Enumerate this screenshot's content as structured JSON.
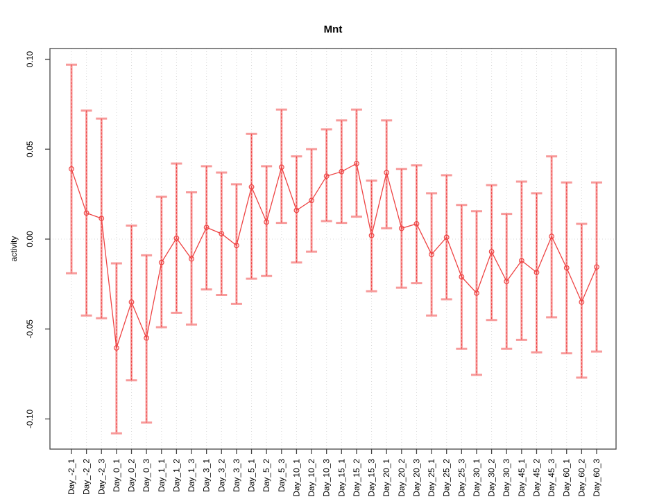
{
  "title": "Mnt",
  "colors": {
    "series": "#ee4343",
    "whisker": "#f79a9a",
    "grid": "#d8d8d8",
    "axis": "#454545",
    "text": "#000000",
    "background": "#ffffff"
  },
  "chart_data": {
    "type": "line",
    "subtype": "points-with-error-bars",
    "title": "Mnt",
    "xlabel": "",
    "ylabel": "activity",
    "ylim": [
      -0.117,
      0.106
    ],
    "yticks": [
      0.1,
      0.05,
      0.0,
      -0.05,
      -0.1
    ],
    "ytick_labels": [
      "0.10",
      "0.05",
      "0.00",
      "-0.05",
      "-0.10"
    ],
    "grid": "vertical dotted gridline at every category; dotted horizontal line at y=0",
    "legend_position": "none",
    "marker": "open-circle",
    "categories": [
      "Day_-2_1",
      "Day_-2_2",
      "Day_-2_3",
      "Day_0_1",
      "Day_0_2",
      "Day_0_3",
      "Day_1_1",
      "Day_1_2",
      "Day_1_3",
      "Day_3_1",
      "Day_3_2",
      "Day_3_3",
      "Day_5_1",
      "Day_5_2",
      "Day_5_3",
      "Day_10_1",
      "Day_10_2",
      "Day_10_3",
      "Day_15_1",
      "Day_15_2",
      "Day_15_3",
      "Day_20_1",
      "Day_20_2",
      "Day_20_3",
      "Day_25_1",
      "Day_25_2",
      "Day_25_3",
      "Day_30_1",
      "Day_30_2",
      "Day_30_3",
      "Day_45_1",
      "Day_45_2",
      "Day_45_3",
      "Day_60_1",
      "Day_60_2",
      "Day_60_3"
    ],
    "points": [
      {
        "label": "Day_-2_1",
        "value": 0.039,
        "upper": 0.097,
        "lower": -0.019
      },
      {
        "label": "Day_-2_2",
        "value": 0.0145,
        "upper": 0.0715,
        "lower": -0.0425
      },
      {
        "label": "Day_-2_3",
        "value": 0.0115,
        "upper": 0.067,
        "lower": -0.044
      },
      {
        "label": "Day_0_1",
        "value": -0.0605,
        "upper": -0.0135,
        "lower": -0.108
      },
      {
        "label": "Day_0_2",
        "value": -0.035,
        "upper": 0.0075,
        "lower": -0.0785
      },
      {
        "label": "Day_0_3",
        "value": -0.055,
        "upper": -0.009,
        "lower": -0.102
      },
      {
        "label": "Day_1_1",
        "value": -0.013,
        "upper": 0.0235,
        "lower": -0.049
      },
      {
        "label": "Day_1_2",
        "value": 0.0005,
        "upper": 0.042,
        "lower": -0.041
      },
      {
        "label": "Day_1_3",
        "value": -0.011,
        "upper": 0.026,
        "lower": -0.0475
      },
      {
        "label": "Day_3_1",
        "value": 0.0065,
        "upper": 0.0405,
        "lower": -0.028
      },
      {
        "label": "Day_3_2",
        "value": 0.003,
        "upper": 0.037,
        "lower": -0.031
      },
      {
        "label": "Day_3_3",
        "value": -0.0035,
        "upper": 0.0305,
        "lower": -0.036
      },
      {
        "label": "Day_5_1",
        "value": 0.029,
        "upper": 0.0585,
        "lower": -0.022
      },
      {
        "label": "Day_5_2",
        "value": 0.0095,
        "upper": 0.0405,
        "lower": -0.0205
      },
      {
        "label": "Day_5_3",
        "value": 0.04,
        "upper": 0.072,
        "lower": 0.009
      },
      {
        "label": "Day_10_1",
        "value": 0.016,
        "upper": 0.046,
        "lower": -0.013
      },
      {
        "label": "Day_10_2",
        "value": 0.0215,
        "upper": 0.05,
        "lower": -0.007
      },
      {
        "label": "Day_10_3",
        "value": 0.035,
        "upper": 0.061,
        "lower": 0.01
      },
      {
        "label": "Day_15_1",
        "value": 0.0375,
        "upper": 0.066,
        "lower": 0.009
      },
      {
        "label": "Day_15_2",
        "value": 0.042,
        "upper": 0.072,
        "lower": 0.0125
      },
      {
        "label": "Day_15_3",
        "value": 0.002,
        "upper": 0.0325,
        "lower": -0.029
      },
      {
        "label": "Day_20_1",
        "value": 0.037,
        "upper": 0.066,
        "lower": 0.006
      },
      {
        "label": "Day_20_2",
        "value": 0.006,
        "upper": 0.039,
        "lower": -0.027
      },
      {
        "label": "Day_20_3",
        "value": 0.0085,
        "upper": 0.041,
        "lower": -0.0245
      },
      {
        "label": "Day_25_1",
        "value": -0.0085,
        "upper": 0.0255,
        "lower": -0.0425
      },
      {
        "label": "Day_25_2",
        "value": 0.001,
        "upper": 0.0355,
        "lower": -0.0335
      },
      {
        "label": "Day_25_3",
        "value": -0.021,
        "upper": 0.019,
        "lower": -0.061
      },
      {
        "label": "Day_30_1",
        "value": -0.03,
        "upper": 0.0155,
        "lower": -0.0755
      },
      {
        "label": "Day_30_2",
        "value": -0.007,
        "upper": 0.03,
        "lower": -0.045
      },
      {
        "label": "Day_30_3",
        "value": -0.0235,
        "upper": 0.014,
        "lower": -0.061
      },
      {
        "label": "Day_45_1",
        "value": -0.012,
        "upper": 0.032,
        "lower": -0.056
      },
      {
        "label": "Day_45_2",
        "value": -0.0185,
        "upper": 0.0255,
        "lower": -0.063
      },
      {
        "label": "Day_45_3",
        "value": 0.0015,
        "upper": 0.046,
        "lower": -0.0435
      },
      {
        "label": "Day_60_1",
        "value": -0.016,
        "upper": 0.0315,
        "lower": -0.0635
      },
      {
        "label": "Day_60_2",
        "value": -0.035,
        "upper": 0.0085,
        "lower": -0.077
      },
      {
        "label": "Day_60_3",
        "value": -0.0155,
        "upper": 0.0315,
        "lower": -0.0625
      }
    ]
  }
}
